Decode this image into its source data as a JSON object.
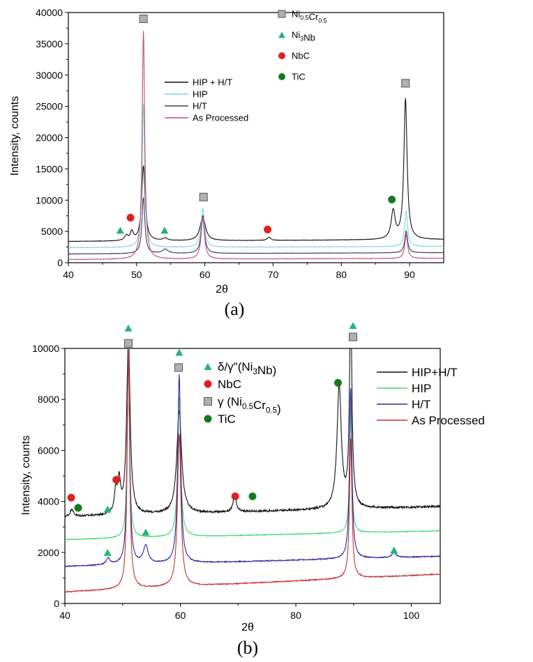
{
  "colors": {
    "hip_ht": "#111111",
    "hip": "#7fd3e6",
    "ht": "#3a3a6a",
    "as_processed": "#c0506a",
    "hip_b": "#3fd870",
    "ht_b": "#2a2aa0",
    "as_processed_b": "#c83030",
    "ni3nb_marker": "#22b573",
    "nbc_marker": "#e02020",
    "tic_marker": "#157a1e",
    "nicr_marker": "#b0b0b0"
  },
  "chart_data": [
    {
      "id": "a",
      "type": "line",
      "caption": "(a)",
      "xlabel": "2θ",
      "ylabel": "Intensity, counts",
      "xlim": [
        40,
        95
      ],
      "ylim": [
        0,
        40000
      ],
      "xticks": [
        40,
        50,
        60,
        70,
        80,
        90
      ],
      "yticks": [
        0,
        5000,
        10000,
        15000,
        20000,
        25000,
        30000,
        35000,
        40000
      ],
      "legend_markers": [
        {
          "label": "Ni0.5Cr0.5",
          "main": "Ni",
          "sub1": "0.5",
          "mid": "Cr",
          "sub2": "0.5",
          "shape": "square",
          "color_key": "nicr_marker"
        },
        {
          "label": "Ni3Nb",
          "main": "Ni",
          "sub1": "3",
          "mid": "Nb",
          "sub2": "",
          "shape": "triangle",
          "color_key": "ni3nb_marker"
        },
        {
          "label": "NbC",
          "main": "NbC",
          "sub1": "",
          "mid": "",
          "sub2": "",
          "shape": "circle",
          "color_key": "nbc_marker"
        },
        {
          "label": "TiC",
          "main": "TiC",
          "sub1": "",
          "mid": "",
          "sub2": "",
          "shape": "circle",
          "color_key": "tic_marker"
        }
      ],
      "series": [
        {
          "name": "HIP + H/T",
          "color_key": "hip_ht",
          "baseline": 3400,
          "baseline_end": 3700,
          "peaks": [
            [
              48.5,
              800,
              0.3
            ],
            [
              49.3,
              1400,
              0.25
            ],
            [
              51.0,
              12000,
              0.3
            ],
            [
              54.2,
              400,
              0.4
            ],
            [
              59.7,
              4000,
              0.45
            ],
            [
              69.4,
              500,
              0.3
            ],
            [
              87.6,
              4500,
              0.35
            ],
            [
              89.4,
              22500,
              0.28
            ]
          ]
        },
        {
          "name": "HIP",
          "color_key": "hip",
          "baseline": 2400,
          "baseline_end": 2600,
          "peaks": [
            [
              51.0,
              23000,
              0.22
            ],
            [
              59.7,
              6200,
              0.3
            ],
            [
              89.5,
              5700,
              0.25
            ]
          ]
        },
        {
          "name": "H/T",
          "color_key": "ht",
          "baseline": 1400,
          "baseline_end": 1600,
          "peaks": [
            [
              51.0,
              9000,
              0.25
            ],
            [
              54.2,
              700,
              0.5
            ],
            [
              59.7,
              5800,
              0.3
            ],
            [
              89.5,
              3500,
              0.25
            ]
          ]
        },
        {
          "name": "As Processed",
          "color_key": "as_processed",
          "baseline": 500,
          "baseline_end": 700,
          "peaks": [
            [
              51.0,
              36500,
              0.22
            ],
            [
              59.7,
              6500,
              0.3
            ],
            [
              89.5,
              3800,
              0.25
            ]
          ]
        }
      ],
      "markers": [
        {
          "shape": "square",
          "color_key": "nicr_marker",
          "x": 51.0,
          "y": 39000
        },
        {
          "shape": "square",
          "color_key": "nicr_marker",
          "x": 59.8,
          "y": 10500
        },
        {
          "shape": "square",
          "color_key": "nicr_marker",
          "x": 89.4,
          "y": 28700
        },
        {
          "shape": "triangle",
          "color_key": "ni3nb_marker",
          "x": 47.6,
          "y": 5200
        },
        {
          "shape": "triangle",
          "color_key": "ni3nb_marker",
          "x": 54.1,
          "y": 5200
        },
        {
          "shape": "circle",
          "color_key": "nbc_marker",
          "x": 49.1,
          "y": 7200
        },
        {
          "shape": "circle",
          "color_key": "nbc_marker",
          "x": 69.2,
          "y": 5300
        },
        {
          "shape": "circle",
          "color_key": "tic_marker",
          "x": 87.4,
          "y": 10100
        }
      ]
    },
    {
      "id": "b",
      "type": "line",
      "caption": "(b)",
      "xlabel": "2θ",
      "ylabel": "Intensity, counts",
      "xlim": [
        40,
        105
      ],
      "ylim": [
        0,
        10000
      ],
      "xticks": [
        40,
        60,
        80,
        100
      ],
      "yticks": [
        0,
        2000,
        4000,
        6000,
        8000,
        10000
      ],
      "legend_markers": [
        {
          "label": "δ/γ\"(Ni3Nb)",
          "main": "δ/γ\"(Ni",
          "sub1": "3",
          "mid": "Nb)",
          "sub2": "",
          "shape": "triangle",
          "color_key": "ni3nb_marker"
        },
        {
          "label": "NbC",
          "main": "NbC",
          "sub1": "",
          "mid": "",
          "sub2": "",
          "shape": "circle",
          "color_key": "nbc_marker"
        },
        {
          "label": "γ (Ni0.5Cr0.5)",
          "main": "γ (Ni",
          "sub1": "0.5",
          "mid": "Cr",
          "sub2": "0.5",
          "tail": ")",
          "shape": "square",
          "color_key": "nicr_marker"
        },
        {
          "label": "TiC",
          "main": "TiC",
          "sub1": "",
          "mid": "",
          "sub2": "",
          "shape": "circle",
          "color_key": "tic_marker"
        }
      ],
      "series": [
        {
          "name": "HIP+H/T",
          "color_key": "hip_ht",
          "baseline": 3400,
          "baseline_end": 3800,
          "noise": 80,
          "peaks": [
            [
              41.2,
              300,
              0.3
            ],
            [
              48.8,
              800,
              0.3
            ],
            [
              49.4,
              1200,
              0.3
            ],
            [
              51.0,
              7000,
              0.35
            ],
            [
              59.8,
              4000,
              0.5
            ],
            [
              69.4,
              700,
              0.3
            ],
            [
              87.5,
              4800,
              0.45
            ],
            [
              89.5,
              8000,
              0.25
            ]
          ]
        },
        {
          "name": "HIP",
          "color_key": "hip_b",
          "baseline": 2500,
          "baseline_end": 2850,
          "noise": 30,
          "peaks": [
            [
              51.0,
              8000,
              0.22
            ],
            [
              59.8,
              5500,
              0.3
            ],
            [
              89.5,
              5000,
              0.22
            ]
          ]
        },
        {
          "name": "H/T",
          "color_key": "ht_b",
          "baseline": 1450,
          "baseline_end": 1850,
          "noise": 40,
          "peaks": [
            [
              47.5,
              250,
              0.4
            ],
            [
              51.0,
              8500,
              0.25
            ],
            [
              54.0,
              700,
              0.5
            ],
            [
              59.8,
              7400,
              0.3
            ],
            [
              89.5,
              6700,
              0.25
            ],
            [
              97.0,
              200,
              0.4
            ]
          ]
        },
        {
          "name": "As Processed",
          "color_key": "as_processed_b",
          "baseline": 450,
          "baseline_end": 1150,
          "noise": 40,
          "peaks": [
            [
              51.0,
              9500,
              0.25
            ],
            [
              59.8,
              6000,
              0.35
            ],
            [
              89.5,
              5500,
              0.25
            ]
          ]
        }
      ],
      "markers": [
        {
          "shape": "triangle",
          "color_key": "ni3nb_marker",
          "x": 51.0,
          "y": 10800
        },
        {
          "shape": "square",
          "color_key": "nicr_marker",
          "x": 51.0,
          "y": 10200
        },
        {
          "shape": "triangle",
          "color_key": "ni3nb_marker",
          "x": 59.8,
          "y": 9850
        },
        {
          "shape": "square",
          "color_key": "nicr_marker",
          "x": 59.7,
          "y": 9250
        },
        {
          "shape": "triangle",
          "color_key": "ni3nb_marker",
          "x": 89.9,
          "y": 10900
        },
        {
          "shape": "square",
          "color_key": "nicr_marker",
          "x": 89.9,
          "y": 10450
        },
        {
          "shape": "triangle",
          "color_key": "ni3nb_marker",
          "x": 47.4,
          "y": 3700
        },
        {
          "shape": "triangle",
          "color_key": "ni3nb_marker",
          "x": 54.0,
          "y": 2800
        },
        {
          "shape": "triangle",
          "color_key": "ni3nb_marker",
          "x": 47.4,
          "y": 2000
        },
        {
          "shape": "triangle",
          "color_key": "ni3nb_marker",
          "x": 97.0,
          "y": 2100
        },
        {
          "shape": "circle",
          "color_key": "nbc_marker",
          "x": 41.1,
          "y": 4150
        },
        {
          "shape": "circle",
          "color_key": "nbc_marker",
          "x": 48.9,
          "y": 4850
        },
        {
          "shape": "circle",
          "color_key": "nbc_marker",
          "x": 69.5,
          "y": 4200
        },
        {
          "shape": "circle",
          "color_key": "tic_marker",
          "x": 42.3,
          "y": 3750
        },
        {
          "shape": "circle",
          "color_key": "tic_marker",
          "x": 72.5,
          "y": 4200
        },
        {
          "shape": "circle",
          "color_key": "tic_marker",
          "x": 87.3,
          "y": 8650
        }
      ]
    }
  ]
}
